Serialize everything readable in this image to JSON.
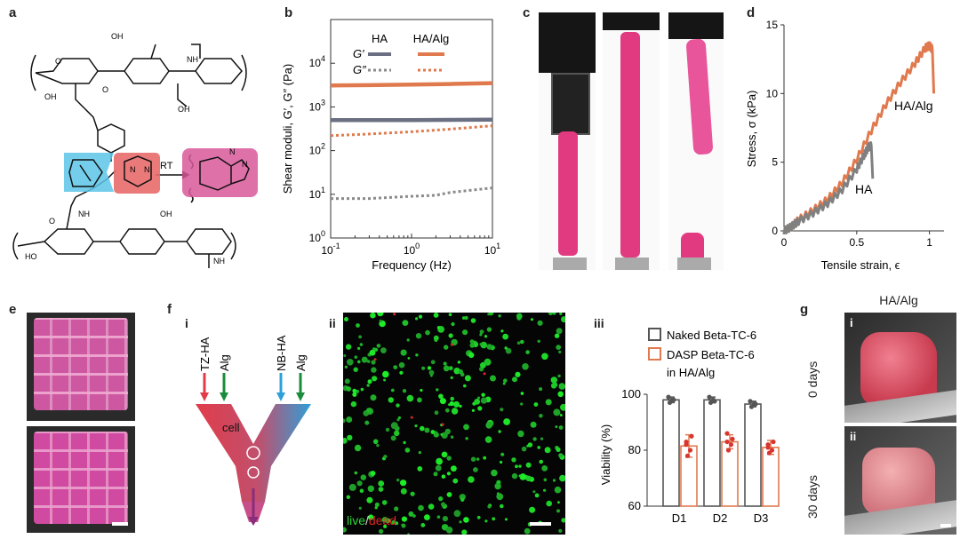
{
  "panels": {
    "a": "a",
    "b": "b",
    "c": "c",
    "d": "d",
    "e": "e",
    "f": "f",
    "g": "g",
    "f_i": "i",
    "f_ii": "ii",
    "f_iii": "iii",
    "g_i": "i",
    "g_ii": "ii"
  },
  "panel_a": {
    "labels": [
      "OH",
      "NH",
      "O",
      "OH",
      "OH",
      "O",
      "N",
      "N",
      "N",
      "N",
      "RT",
      "NH",
      "O",
      "OH",
      "HO",
      "O",
      "O",
      "HO",
      "O",
      "NH",
      "O",
      "N",
      "N",
      "OH",
      "O",
      "OH",
      "O"
    ],
    "reaction_label": "RT"
  },
  "panel_c": {},
  "panel_e": {},
  "panel_f_i": {
    "inputs": [
      "TZ-HA",
      "Alg",
      "NB-HA",
      "Alg"
    ],
    "cell_label": "cell",
    "colors": {
      "tz": "#e23c4a",
      "nb": "#2f9fd8",
      "alg": "#1a8c3c"
    }
  },
  "panel_f_ii": {
    "live_label": "live",
    "sep": "/",
    "dead_label": "dead"
  },
  "panel_g": {
    "title": "HA/Alg",
    "day0": "0 days",
    "day30": "30 days"
  },
  "chart_data": [
    {
      "id": "b",
      "type": "line",
      "xlabel": "Frequency (Hz)",
      "ylabel": "Shear moduli, G′, G″ (Pa)",
      "xscale": "log",
      "yscale": "log",
      "xlim": [
        0.1,
        10
      ],
      "ylim": [
        1,
        100000
      ],
      "x_ticks": [
        "10^-1",
        "10^0",
        "10^1"
      ],
      "y_ticks": [
        "10^0",
        "10^1",
        "10^2",
        "10^3",
        "10^4"
      ],
      "legend_cols": [
        "HA",
        "HA/Alg"
      ],
      "legend_rows": [
        "G′",
        "G″"
      ],
      "series": [
        {
          "name": "G′ HA",
          "color": "#6b6f82",
          "style": "solid",
          "x": [
            0.1,
            0.3,
            1,
            3,
            10
          ],
          "y": [
            500,
            500,
            500,
            505,
            510
          ]
        },
        {
          "name": "G′ HA/Alg",
          "color": "#e07a4e",
          "style": "solid",
          "x": [
            0.1,
            0.3,
            1,
            3,
            10
          ],
          "y": [
            3100,
            3150,
            3250,
            3350,
            3500
          ]
        },
        {
          "name": "G″ HA",
          "color": "#8a8a8a",
          "style": "dotted",
          "x": [
            0.1,
            0.3,
            1,
            2,
            3,
            10
          ],
          "y": [
            8,
            8,
            9,
            9.5,
            11,
            14
          ]
        },
        {
          "name": "G″ HA/Alg",
          "color": "#e07a4e",
          "style": "dotted",
          "x": [
            0.1,
            0.3,
            1,
            3,
            10
          ],
          "y": [
            220,
            240,
            270,
            310,
            370
          ]
        }
      ]
    },
    {
      "id": "d",
      "type": "line",
      "xlabel": "Tensile strain, ϵ",
      "ylabel": "Stress, σ (kPa)",
      "xlim": [
        0,
        1.1
      ],
      "ylim": [
        0,
        15
      ],
      "x_ticks": [
        "0",
        "0.5",
        "1"
      ],
      "y_ticks": [
        "0",
        "5",
        "10",
        "15"
      ],
      "series": [
        {
          "name": "HA/Alg",
          "color": "#e07a4e",
          "x": [
            0,
            0.05,
            0.1,
            0.2,
            0.3,
            0.4,
            0.5,
            0.6,
            0.7,
            0.8,
            0.9,
            0.97,
            1.0,
            1.02,
            1.03
          ],
          "y": [
            0,
            0.3,
            0.8,
            1.5,
            2.3,
            3.5,
            5.2,
            7.3,
            9.2,
            10.8,
            12.2,
            13.3,
            13.5,
            13.2,
            10
          ]
        },
        {
          "name": "HA",
          "color": "#808080",
          "x": [
            0,
            0.05,
            0.1,
            0.2,
            0.3,
            0.4,
            0.5,
            0.55,
            0.58,
            0.6,
            0.61
          ],
          "y": [
            0,
            0.3,
            0.7,
            1.3,
            2.0,
            3.0,
            4.5,
            5.5,
            6.1,
            6.2,
            3.8
          ]
        }
      ],
      "annotations": [
        "HA/Alg",
        "HA"
      ]
    },
    {
      "id": "f_iii",
      "type": "bar",
      "ylabel": "Viability (%)",
      "ylim": [
        60,
        100
      ],
      "y_ticks": [
        "60",
        "80",
        "100"
      ],
      "categories": [
        "D1",
        "D2",
        "D3"
      ],
      "series": [
        {
          "name": "Naked Beta-TC-6",
          "color": "#555555",
          "values": [
            98,
            98,
            96.5
          ],
          "errors": [
            1,
            1,
            1
          ],
          "points": [
            [
              97,
              98,
              99,
              98
            ],
            [
              97,
              98,
              99,
              97.5
            ],
            [
              95.5,
              96.5,
              97.5,
              96.5
            ]
          ]
        },
        {
          "name": "DASP Beta-TC-6 in HA/Alg",
          "color": "#e07a4e",
          "values": [
            81.5,
            83,
            81
          ],
          "errors": [
            4,
            2.5,
            2.5
          ],
          "points": [
            [
              78,
              80,
              82,
              85,
              83
            ],
            [
              80,
              82,
              83,
              84,
              86
            ],
            [
              79,
              80,
              82,
              83,
              81
            ]
          ]
        }
      ],
      "legend_lines": [
        "Naked Beta-TC-6",
        "DASP Beta-TC-6",
        "in HA/Alg"
      ]
    }
  ]
}
